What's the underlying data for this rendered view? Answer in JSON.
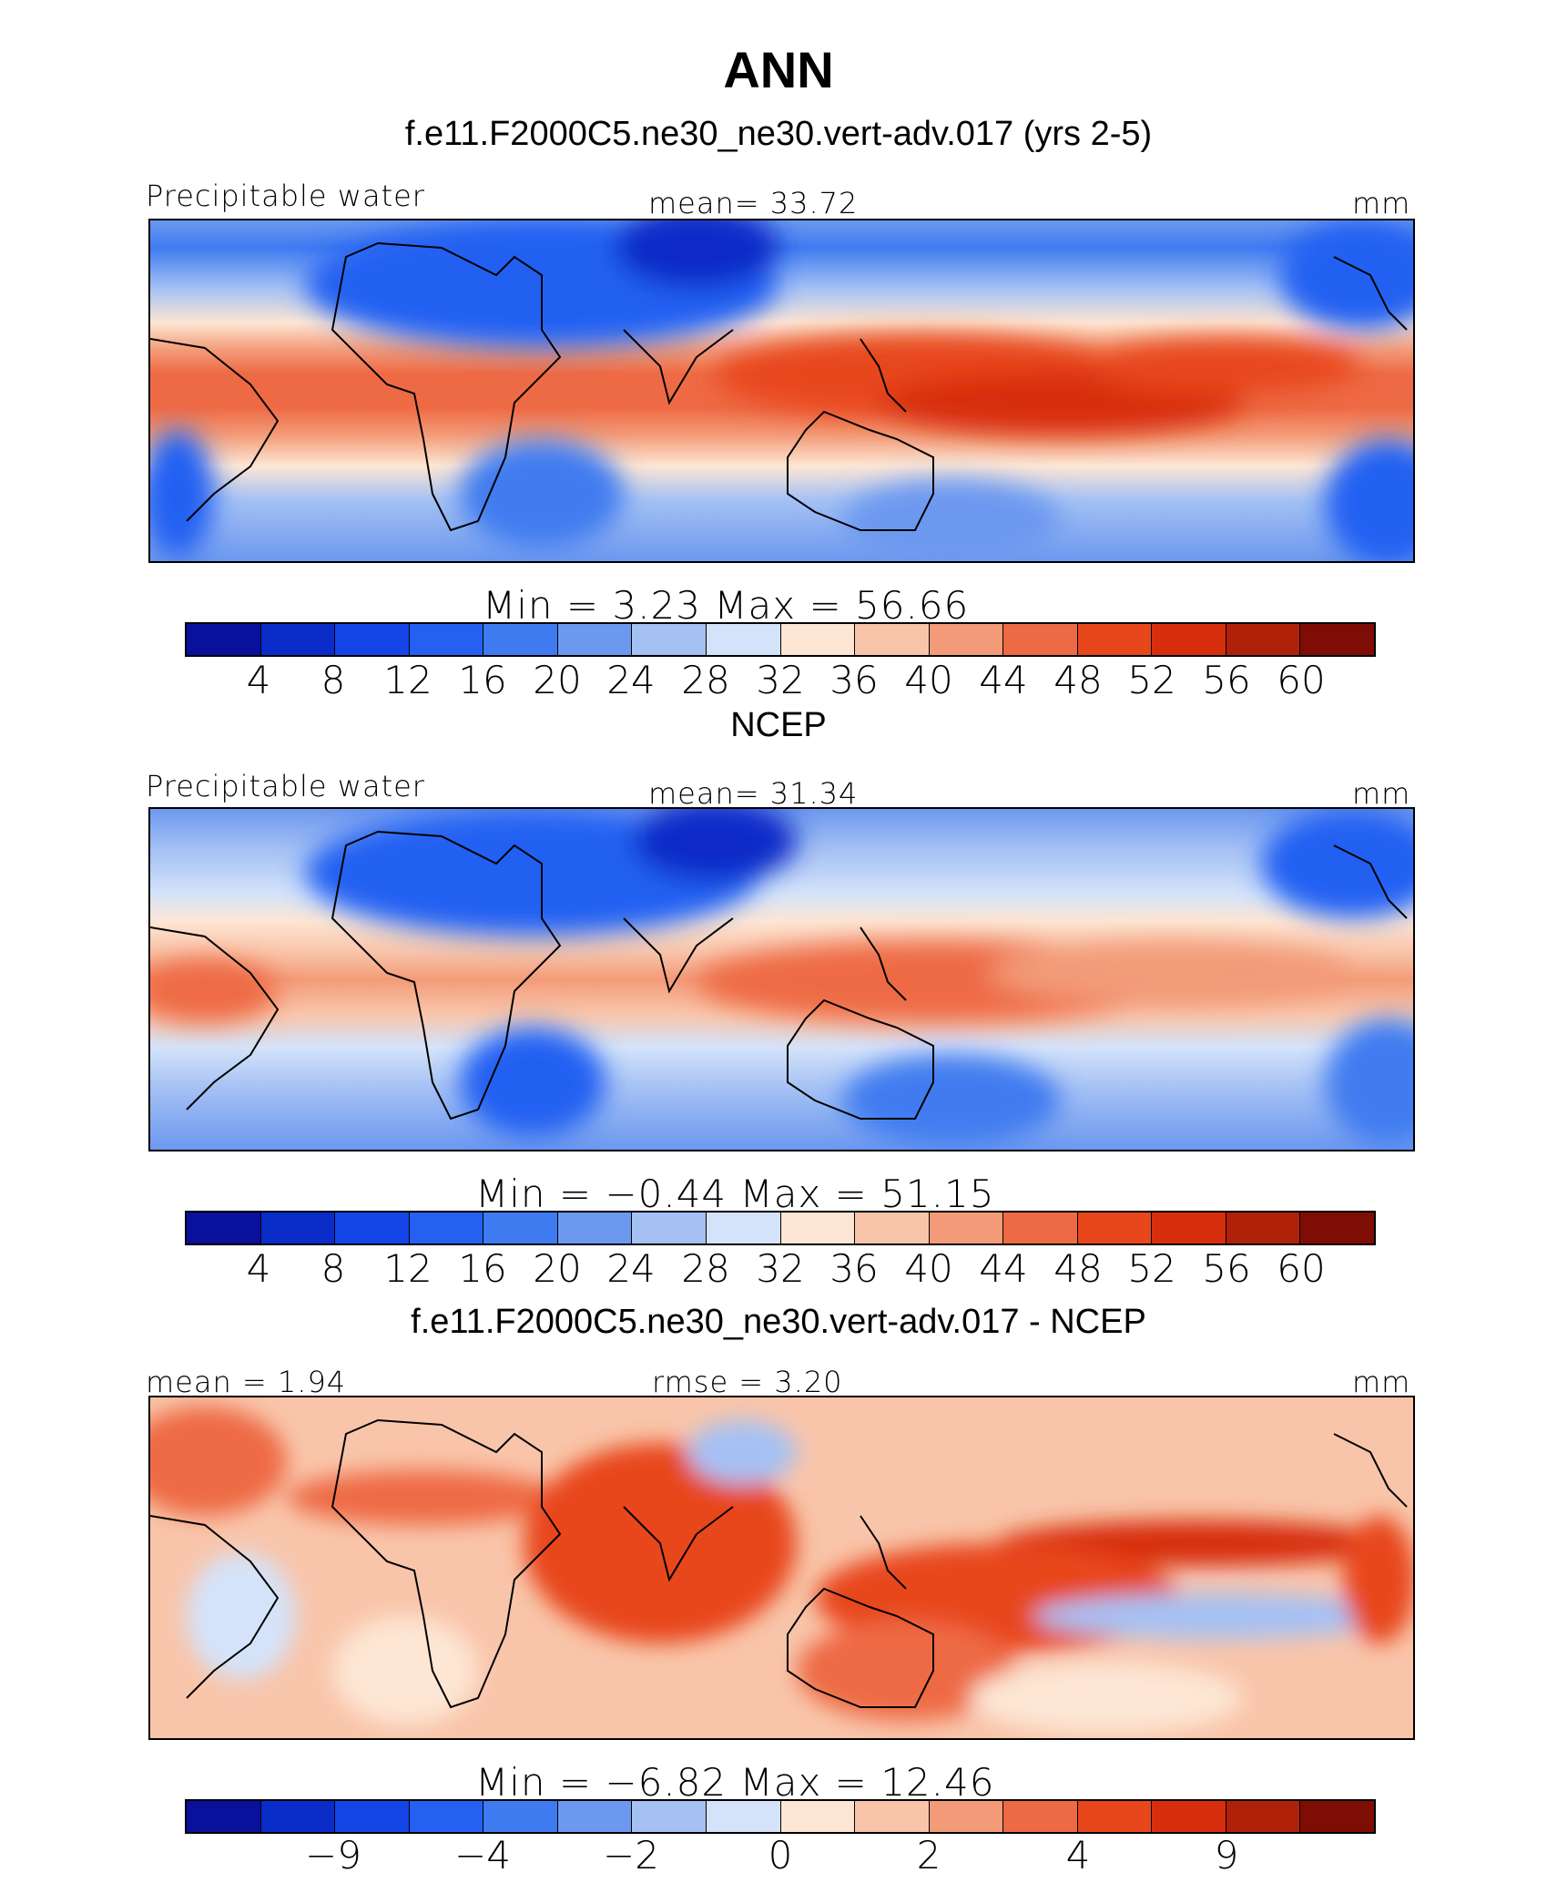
{
  "title": "ANN",
  "panels": [
    {
      "id": "model",
      "title": "f.e11.F2000C5.ne30_ne30.vert-adv.017 (yrs 2-5)",
      "left_label": "Precipitable water",
      "center_label": "mean=   33.72",
      "units": "mm",
      "minmax": "Min  =     3.23  Max  =    56.66",
      "tick_labels": [
        "4",
        "8",
        "12",
        "16",
        "20",
        "24",
        "28",
        "32",
        "36",
        "40",
        "44",
        "48",
        "52",
        "56",
        "60"
      ],
      "min": 3.23,
      "max": 56.66,
      "mean": 33.72
    },
    {
      "id": "obs",
      "title": "NCEP",
      "left_label": "Precipitable water",
      "center_label": "mean=   31.34",
      "units": "mm",
      "minmax": "Min  =   −0.44  Max  =    51.15",
      "tick_labels": [
        "4",
        "8",
        "12",
        "16",
        "20",
        "24",
        "28",
        "32",
        "36",
        "40",
        "44",
        "48",
        "52",
        "56",
        "60"
      ],
      "min": -0.44,
      "max": 51.15,
      "mean": 31.34
    },
    {
      "id": "diff",
      "title": "f.e11.F2000C5.ne30_ne30.vert-adv.017 - NCEP",
      "left_label": "mean  =    1.94",
      "center_label": "rmse  =     3.20",
      "units": "mm",
      "minmax": "Min  =   −6.82  Max  =    12.46",
      "tick_labels": [
        "−9",
        "",
        "−4",
        "",
        "−2",
        "",
        "0",
        "",
        "2",
        "",
        "4",
        "",
        "9",
        "",
        ""
      ],
      "min": -6.82,
      "max": 12.46,
      "mean": 1.94,
      "rmse": 3.2
    }
  ],
  "colormap": [
    "#08109c",
    "#0a2cc8",
    "#1445e6",
    "#2460f2",
    "#3f7bf0",
    "#6c98ef",
    "#a5c1f4",
    "#d4e3fa",
    "#fde6d4",
    "#f9c5aa",
    "#f39b78",
    "#ee6a45",
    "#e8471c",
    "#d72e0e",
    "#b0210a",
    "#7e0d05"
  ],
  "colormap_levels_abs": [
    4,
    8,
    12,
    16,
    20,
    24,
    28,
    32,
    36,
    40,
    44,
    48,
    52,
    56,
    60
  ],
  "colormap_levels_diff": [
    -9,
    -4,
    -2,
    0,
    2,
    4,
    9
  ]
}
